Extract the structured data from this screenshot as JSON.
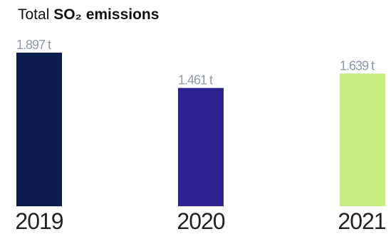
{
  "chart_data": {
    "type": "bar",
    "title_prefix": "Total",
    "title_bold": "SO₂ emissions",
    "categories": [
      "2019",
      "2020",
      "2021"
    ],
    "values": [
      1897,
      1461,
      1639
    ],
    "value_labels": [
      "1.897 t",
      "1.461 t",
      "1.639 t"
    ],
    "unit": "t",
    "colors": [
      "#0c1d4d",
      "#2c2290",
      "#c4ec7f"
    ],
    "ylim": [
      0,
      1897
    ],
    "grid": false,
    "legend": "none"
  }
}
